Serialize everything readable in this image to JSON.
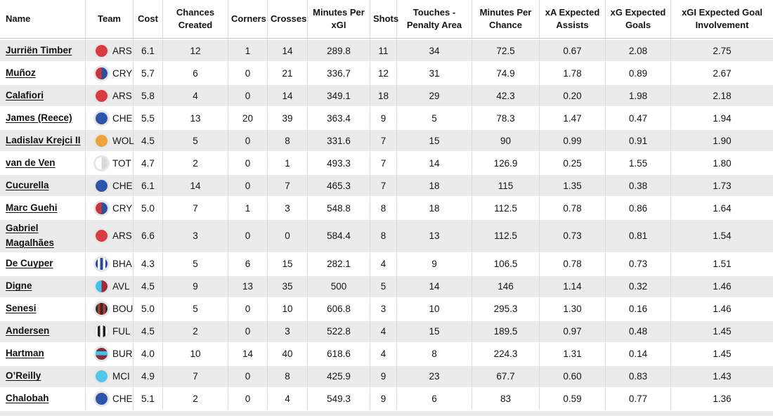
{
  "table": {
    "columns": [
      {
        "key": "name",
        "label": "Name"
      },
      {
        "key": "team",
        "label": "Team"
      },
      {
        "key": "cost",
        "label": "Cost"
      },
      {
        "key": "chances_created",
        "label": "Chances Created"
      },
      {
        "key": "corners",
        "label": "Corners"
      },
      {
        "key": "crosses",
        "label": "Crosses"
      },
      {
        "key": "minutes_per_xgi",
        "label": "Minutes Per xGI"
      },
      {
        "key": "shots",
        "label": "Shots"
      },
      {
        "key": "touches_penalty_area",
        "label": "Touches - Penalty Area"
      },
      {
        "key": "minutes_per_chance",
        "label": "Minutes Per Chance"
      },
      {
        "key": "xa",
        "label": "xA Expected Assists"
      },
      {
        "key": "xg",
        "label": "xG Expected Goals"
      },
      {
        "key": "xgi",
        "label": "xGI Expected Goal Involvement"
      }
    ],
    "rows": [
      {
        "name": "Jurriën Timber",
        "team": "ARS",
        "cost": "6.1",
        "chances_created": "12",
        "corners": "1",
        "crosses": "14",
        "minutes_per_xgi": "289.8",
        "shots": "11",
        "touches_penalty_area": "34",
        "minutes_per_chance": "72.5",
        "xa": "0.67",
        "xg": "2.08",
        "xgi": "2.75"
      },
      {
        "name": "Muñoz",
        "team": "CRY",
        "cost": "5.7",
        "chances_created": "6",
        "corners": "0",
        "crosses": "21",
        "minutes_per_xgi": "336.7",
        "shots": "12",
        "touches_penalty_area": "31",
        "minutes_per_chance": "74.9",
        "xa": "1.78",
        "xg": "0.89",
        "xgi": "2.67"
      },
      {
        "name": "Calafiori",
        "team": "ARS",
        "cost": "5.8",
        "chances_created": "4",
        "corners": "0",
        "crosses": "14",
        "minutes_per_xgi": "349.1",
        "shots": "18",
        "touches_penalty_area": "29",
        "minutes_per_chance": "42.3",
        "xa": "0.20",
        "xg": "1.98",
        "xgi": "2.18"
      },
      {
        "name": "James (Reece)",
        "team": "CHE",
        "cost": "5.5",
        "chances_created": "13",
        "corners": "20",
        "crosses": "39",
        "minutes_per_xgi": "363.4",
        "shots": "9",
        "touches_penalty_area": "5",
        "minutes_per_chance": "78.3",
        "xa": "1.47",
        "xg": "0.47",
        "xgi": "1.94"
      },
      {
        "name": "Ladislav Krejci II",
        "team": "WOL",
        "cost": "4.5",
        "chances_created": "5",
        "corners": "0",
        "crosses": "8",
        "minutes_per_xgi": "331.6",
        "shots": "7",
        "touches_penalty_area": "15",
        "minutes_per_chance": "90",
        "xa": "0.99",
        "xg": "0.91",
        "xgi": "1.90"
      },
      {
        "name": "van de Ven",
        "team": "TOT",
        "cost": "4.7",
        "chances_created": "2",
        "corners": "0",
        "crosses": "1",
        "minutes_per_xgi": "493.3",
        "shots": "7",
        "touches_penalty_area": "14",
        "minutes_per_chance": "126.9",
        "xa": "0.25",
        "xg": "1.55",
        "xgi": "1.80"
      },
      {
        "name": "Cucurella",
        "team": "CHE",
        "cost": "6.1",
        "chances_created": "14",
        "corners": "0",
        "crosses": "7",
        "minutes_per_xgi": "465.3",
        "shots": "7",
        "touches_penalty_area": "18",
        "minutes_per_chance": "115",
        "xa": "1.35",
        "xg": "0.38",
        "xgi": "1.73"
      },
      {
        "name": "Marc Guehi",
        "team": "CRY",
        "cost": "5.0",
        "chances_created": "7",
        "corners": "1",
        "crosses": "3",
        "minutes_per_xgi": "548.8",
        "shots": "8",
        "touches_penalty_area": "18",
        "minutes_per_chance": "112.5",
        "xa": "0.78",
        "xg": "0.86",
        "xgi": "1.64"
      },
      {
        "name": "Gabriel Magalhães",
        "team": "ARS",
        "cost": "6.6",
        "chances_created": "3",
        "corners": "0",
        "crosses": "0",
        "minutes_per_xgi": "584.4",
        "shots": "8",
        "touches_penalty_area": "13",
        "minutes_per_chance": "112.5",
        "xa": "0.73",
        "xg": "0.81",
        "xgi": "1.54"
      },
      {
        "name": "De Cuyper",
        "team": "BHA",
        "cost": "4.3",
        "chances_created": "5",
        "corners": "6",
        "crosses": "15",
        "minutes_per_xgi": "282.1",
        "shots": "4",
        "touches_penalty_area": "9",
        "minutes_per_chance": "106.5",
        "xa": "0.78",
        "xg": "0.73",
        "xgi": "1.51"
      },
      {
        "name": "Digne",
        "team": "AVL",
        "cost": "4.5",
        "chances_created": "9",
        "corners": "13",
        "crosses": "35",
        "minutes_per_xgi": "500",
        "shots": "5",
        "touches_penalty_area": "14",
        "minutes_per_chance": "146",
        "xa": "1.14",
        "xg": "0.32",
        "xgi": "1.46"
      },
      {
        "name": "Senesi",
        "team": "BOU",
        "cost": "5.0",
        "chances_created": "5",
        "corners": "0",
        "crosses": "10",
        "minutes_per_xgi": "606.8",
        "shots": "3",
        "touches_penalty_area": "10",
        "minutes_per_chance": "295.3",
        "xa": "1.30",
        "xg": "0.16",
        "xgi": "1.46"
      },
      {
        "name": "Andersen",
        "team": "FUL",
        "cost": "4.5",
        "chances_created": "2",
        "corners": "0",
        "crosses": "3",
        "minutes_per_xgi": "522.8",
        "shots": "4",
        "touches_penalty_area": "15",
        "minutes_per_chance": "189.5",
        "xa": "0.97",
        "xg": "0.48",
        "xgi": "1.45"
      },
      {
        "name": "Hartman",
        "team": "BUR",
        "cost": "4.0",
        "chances_created": "10",
        "corners": "14",
        "crosses": "40",
        "minutes_per_xgi": "618.6",
        "shots": "4",
        "touches_penalty_area": "8",
        "minutes_per_chance": "224.3",
        "xa": "1.31",
        "xg": "0.14",
        "xgi": "1.45"
      },
      {
        "name": "O’Reilly",
        "team": "MCI",
        "cost": "4.9",
        "chances_created": "7",
        "corners": "0",
        "crosses": "8",
        "minutes_per_xgi": "425.9",
        "shots": "9",
        "touches_penalty_area": "23",
        "minutes_per_chance": "67.7",
        "xa": "0.60",
        "xg": "0.83",
        "xgi": "1.43"
      },
      {
        "name": "Chalobah",
        "team": "CHE",
        "cost": "5.1",
        "chances_created": "2",
        "corners": "0",
        "crosses": "4",
        "minutes_per_xgi": "549.3",
        "shots": "9",
        "touches_penalty_area": "6",
        "minutes_per_chance": "83",
        "xa": "0.59",
        "xg": "0.77",
        "xgi": "1.36"
      }
    ],
    "teams": {
      "ARS": {
        "pattern": "solid",
        "colors": [
          "#da3c44"
        ]
      },
      "CRY": {
        "pattern": "half",
        "colors": [
          "#c93441",
          "#2d4f9e"
        ]
      },
      "CHE": {
        "pattern": "solid",
        "colors": [
          "#2d55ab"
        ]
      },
      "WOL": {
        "pattern": "solid",
        "colors": [
          "#eea43c"
        ]
      },
      "TOT": {
        "pattern": "half",
        "colors": [
          "#ffffff",
          "#d8d8d8"
        ]
      },
      "BHA": {
        "pattern": "vstripes",
        "colors": [
          "#2748a2",
          "#ffffff"
        ]
      },
      "AVL": {
        "pattern": "half",
        "colors": [
          "#3fc4ef",
          "#9e2b35"
        ]
      },
      "BOU": {
        "pattern": "vstripes",
        "colors": [
          "#322d2d",
          "#b9342c"
        ]
      },
      "FUL": {
        "pattern": "vstripes",
        "colors": [
          "#ffffff",
          "#1e1e1e"
        ]
      },
      "BUR": {
        "pattern": "hband",
        "colors": [
          "#842c3c",
          "#3cc3ec"
        ]
      },
      "MCI": {
        "pattern": "solid",
        "colors": [
          "#52c6eb"
        ]
      }
    },
    "style_colors": {
      "row_stripe": "#ebebeb",
      "grid_line": "#d9d9d9",
      "text": "#141414"
    }
  }
}
